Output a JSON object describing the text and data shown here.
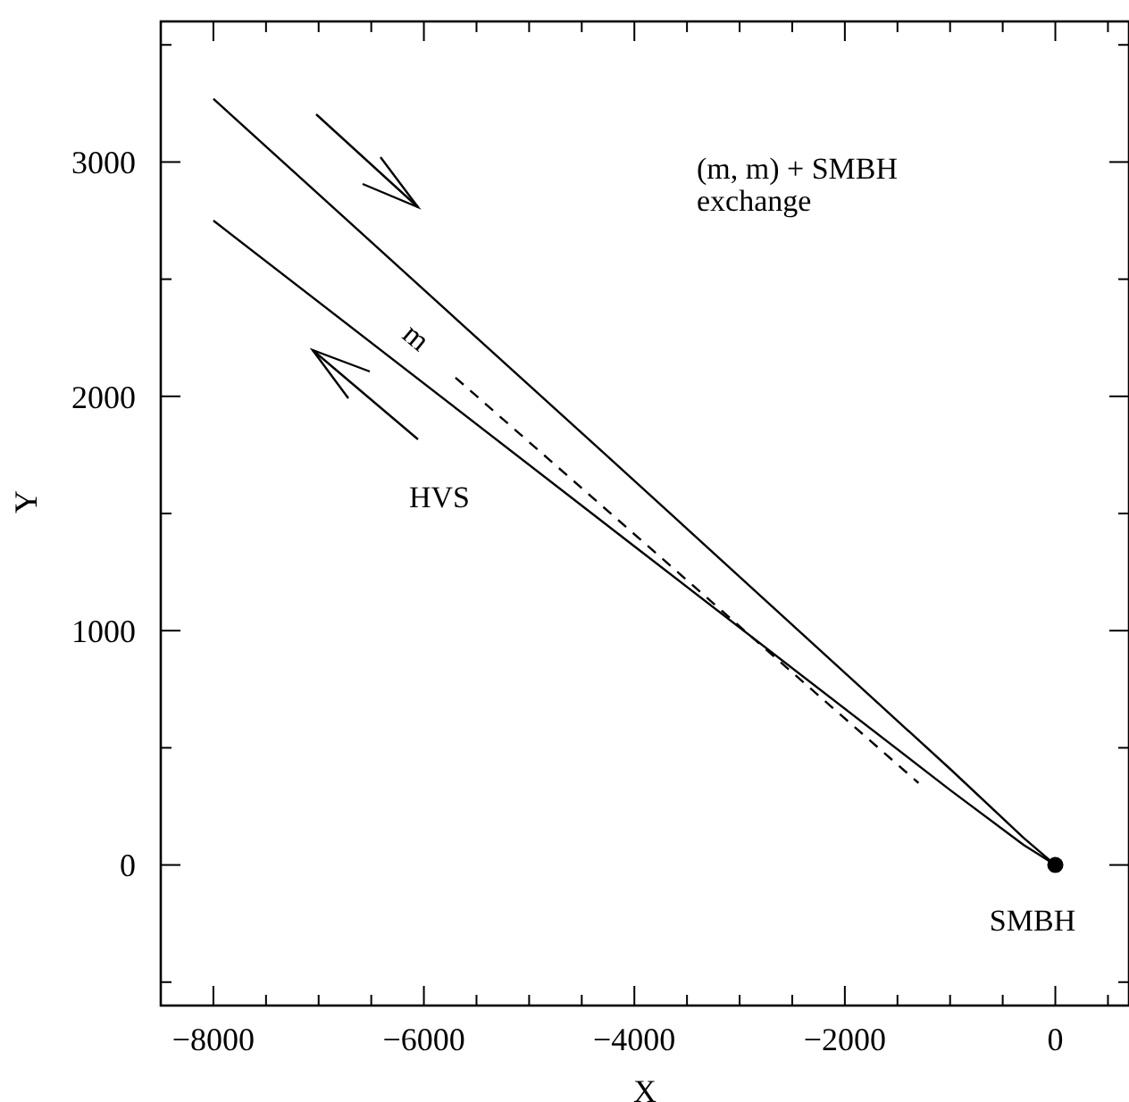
{
  "chart_data": {
    "type": "line",
    "xlabel": "X",
    "ylabel": "Y",
    "xlim": [
      -8500,
      700
    ],
    "ylim": [
      -600,
      3600
    ],
    "xticks": [
      -8000,
      {
        "value": -7500,
        "label": null
      },
      {
        "value": -7000,
        "label": null
      },
      {
        "value": -6500,
        "label": null
      },
      -6000,
      {
        "value": -5500,
        "label": null
      },
      {
        "value": -5000,
        "label": null
      },
      {
        "value": -4500,
        "label": null
      },
      -4000,
      {
        "value": -3500,
        "label": null
      },
      {
        "value": -3000,
        "label": null
      },
      {
        "value": -2500,
        "label": null
      },
      -2000,
      {
        "value": -1500,
        "label": null
      },
      {
        "value": -1000,
        "label": null
      },
      {
        "value": -500,
        "label": null
      },
      0,
      {
        "value": 500,
        "label": null
      }
    ],
    "yticks": [
      {
        "value": -500,
        "label": null
      },
      0,
      {
        "value": 500,
        "label": null
      },
      1000,
      {
        "value": 1500,
        "label": null
      },
      2000,
      {
        "value": 2500,
        "label": null
      },
      3000,
      {
        "value": 3500,
        "label": null
      }
    ],
    "series": [
      {
        "color": "#000000",
        "line_style": "solid",
        "marker": "none",
        "x": [
          -8000,
          -4000,
          -1000,
          -300,
          0
        ],
        "values": [
          3270,
          1640,
          410,
          115,
          0
        ]
      },
      {
        "color": "#000000",
        "line_style": "solid",
        "marker": "none",
        "x": [
          -8000,
          -4000,
          -1000,
          -300,
          0
        ],
        "values": [
          2750,
          1360,
          320,
          85,
          0
        ]
      },
      {
        "color": "#000000",
        "line_style": "dashed",
        "marker": "none",
        "x": [
          -5700,
          -1300
        ],
        "values": [
          2080,
          350
        ]
      },
      {
        "type": "scatter",
        "color": "#000000",
        "marker": "circle",
        "x": [
          0
        ],
        "values": [
          0
        ]
      }
    ],
    "annotations": [
      "(m, m) + SMBH",
      "exchange",
      "m",
      "HVS",
      "SMBH"
    ]
  }
}
